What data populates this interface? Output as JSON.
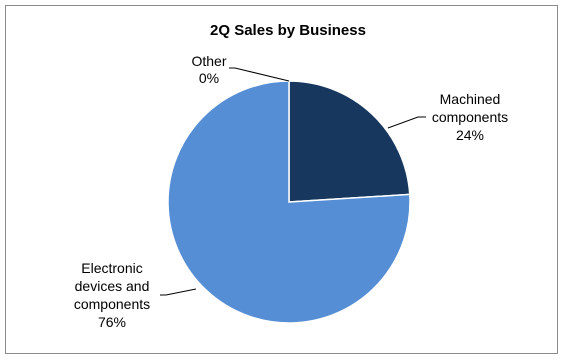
{
  "chart_data": {
    "type": "pie",
    "title": "2Q Sales by Business",
    "start_angle_deg": 0,
    "slices": [
      {
        "label_lines": [
          "Machined",
          "components"
        ],
        "percent_label": "24%",
        "value": 24,
        "color": "#17375e"
      },
      {
        "label_lines": [
          "Electronic",
          "devices and",
          "components"
        ],
        "percent_label": "76%",
        "value": 76,
        "color": "#558ed5"
      },
      {
        "label_lines": [
          "Other"
        ],
        "percent_label": "0%",
        "value": 0,
        "color": "#a5a5a5"
      }
    ],
    "border_color": "#8c8c8c",
    "slice_edge_color": "#ffffff",
    "leader_color": "#000000"
  }
}
